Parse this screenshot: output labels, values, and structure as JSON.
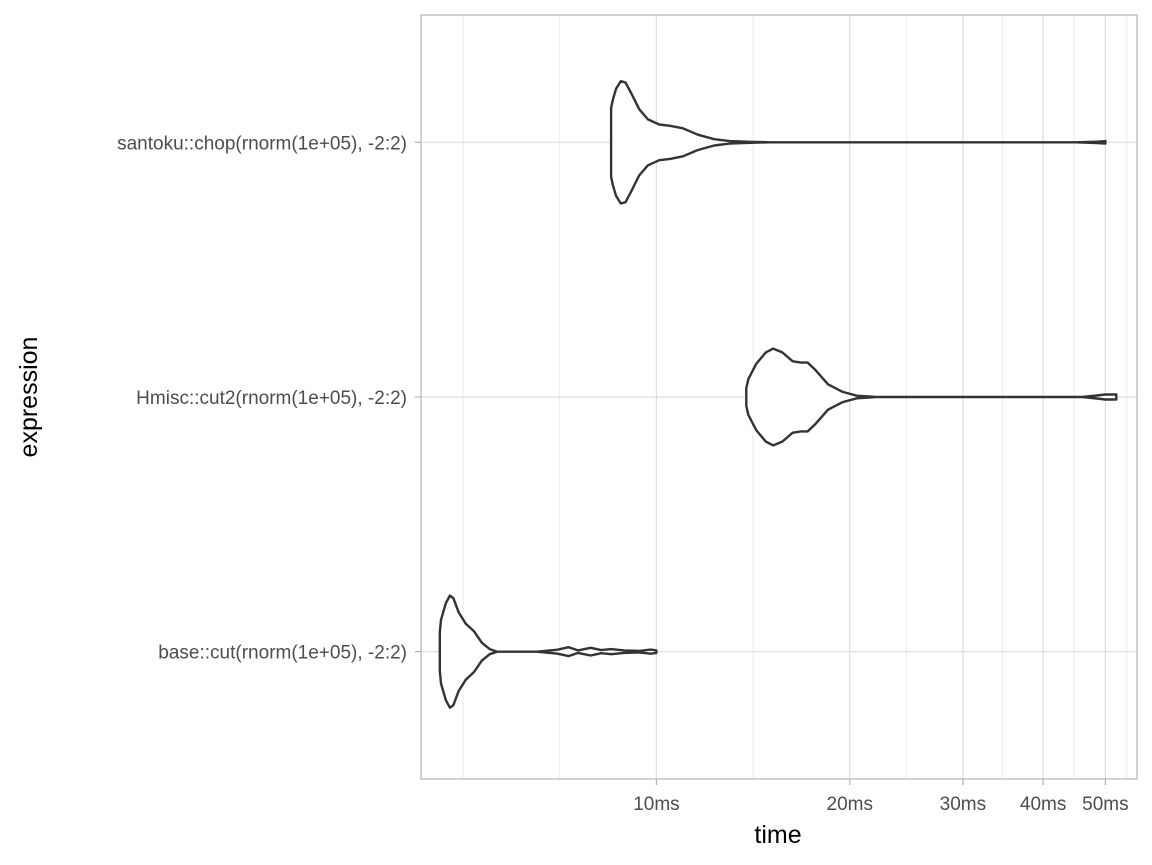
{
  "chart_data": {
    "type": "violin",
    "xlabel": "time",
    "ylabel": "expression",
    "x_scale": "log10",
    "x_unit": "ms",
    "xlim_ms": [
      4.3,
      56
    ],
    "x_ticks": [
      {
        "value": 10,
        "label": "10ms"
      },
      {
        "value": 20,
        "label": "20ms"
      },
      {
        "value": 30,
        "label": "30ms"
      },
      {
        "value": 40,
        "label": "40ms"
      },
      {
        "value": 50,
        "label": "50ms"
      }
    ],
    "x_minor_ticks": [
      5,
      7.07,
      14.14,
      24.5,
      34.6,
      44.7,
      54
    ],
    "categories": [
      "base::cut(rnorm(1e+05), -2:2)",
      "Hmisc::cut2(rnorm(1e+05), -2:2)",
      "santoku::chop(rnorm(1e+05), -2:2)"
    ],
    "series": [
      {
        "expression": "santoku::chop(rnorm(1e+05), -2:2)",
        "min_ms": 8.5,
        "max_ms": 50,
        "profile": [
          [
            8.5,
            0.27
          ],
          [
            8.55,
            0.33
          ],
          [
            8.65,
            0.42
          ],
          [
            8.8,
            0.48
          ],
          [
            8.95,
            0.47
          ],
          [
            9.15,
            0.38
          ],
          [
            9.4,
            0.26
          ],
          [
            9.7,
            0.18
          ],
          [
            10.1,
            0.14
          ],
          [
            10.5,
            0.13
          ],
          [
            11.0,
            0.11
          ],
          [
            11.6,
            0.06
          ],
          [
            12.3,
            0.025
          ],
          [
            13.0,
            0.01
          ],
          [
            14.0,
            0.004
          ],
          [
            15.0,
            0.0
          ],
          [
            18.0,
            0.0
          ],
          [
            30.0,
            0.0
          ],
          [
            45.0,
            0.0
          ],
          [
            48.5,
            0.005
          ],
          [
            50.0,
            0.01
          ]
        ]
      },
      {
        "expression": "Hmisc::cut2(rnorm(1e+05), -2:2)",
        "min_ms": 13.8,
        "max_ms": 52,
        "profile": [
          [
            13.8,
            0.07
          ],
          [
            13.9,
            0.14
          ],
          [
            14.3,
            0.26
          ],
          [
            14.8,
            0.35
          ],
          [
            15.2,
            0.38
          ],
          [
            15.7,
            0.35
          ],
          [
            16.3,
            0.28
          ],
          [
            16.8,
            0.27
          ],
          [
            17.2,
            0.27
          ],
          [
            17.7,
            0.21
          ],
          [
            18.5,
            0.1
          ],
          [
            19.5,
            0.04
          ],
          [
            20.5,
            0.01
          ],
          [
            22.0,
            0.0
          ],
          [
            30.0,
            0.0
          ],
          [
            46.0,
            0.0
          ],
          [
            48.5,
            0.012
          ],
          [
            50.0,
            0.02
          ],
          [
            52.0,
            0.02
          ]
        ]
      },
      {
        "expression": "base::cut(rnorm(1e+05), -2:2)",
        "min_ms": 4.6,
        "max_ms": 10,
        "profile": [
          [
            4.6,
            0.15
          ],
          [
            4.62,
            0.25
          ],
          [
            4.7,
            0.38
          ],
          [
            4.77,
            0.44
          ],
          [
            4.83,
            0.42
          ],
          [
            4.92,
            0.31
          ],
          [
            5.05,
            0.22
          ],
          [
            5.2,
            0.16
          ],
          [
            5.35,
            0.07
          ],
          [
            5.5,
            0.02
          ],
          [
            5.65,
            0.0
          ],
          [
            6.5,
            0.0
          ],
          [
            7.0,
            0.015
          ],
          [
            7.3,
            0.035
          ],
          [
            7.55,
            0.01
          ],
          [
            7.9,
            0.03
          ],
          [
            8.2,
            0.012
          ],
          [
            8.5,
            0.02
          ],
          [
            8.9,
            0.01
          ],
          [
            9.4,
            0.006
          ],
          [
            9.8,
            0.016
          ],
          [
            10.0,
            0.01
          ]
        ]
      }
    ]
  }
}
